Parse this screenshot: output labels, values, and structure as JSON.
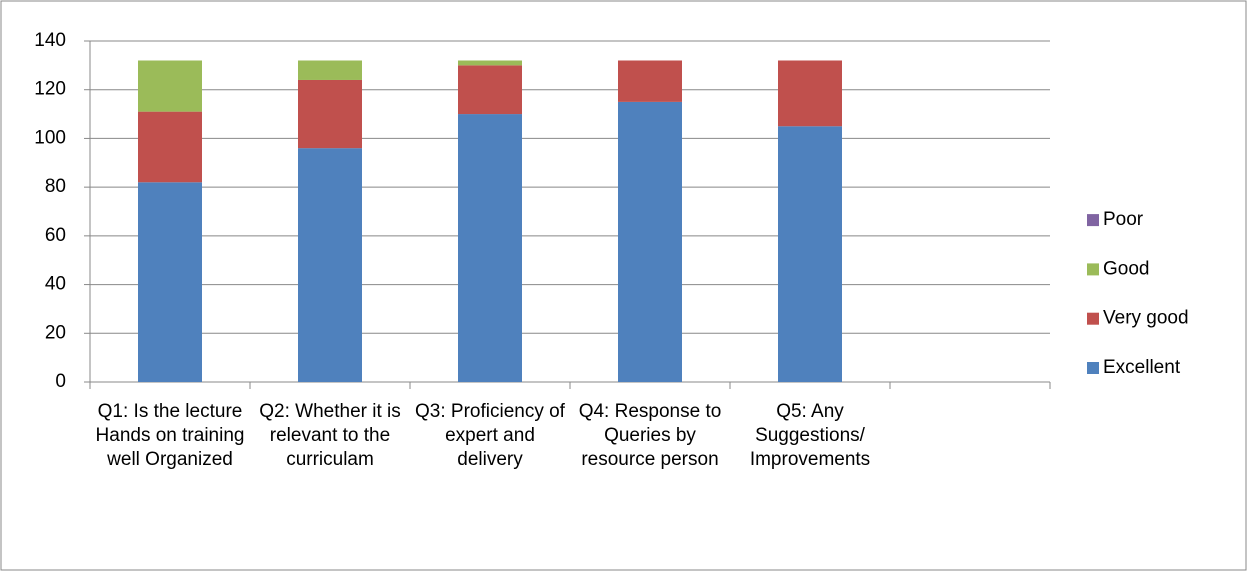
{
  "chart_data": {
    "type": "stacked_bar",
    "categories": [
      "Q1: Is the lecture Hands on training well Organized",
      "Q2: Whether it is relevant to the curriculam",
      "Q3: Proficiency of expert and delivery",
      "Q4: Response to Queries by resource person",
      "Q5: Any Suggestions/ Improvements",
      null
    ],
    "series": [
      {
        "name": "Excellent",
        "color": "#4f81bd",
        "values": [
          82,
          96,
          110,
          115,
          105,
          null
        ]
      },
      {
        "name": "Very good",
        "color": "#c0504d",
        "values": [
          29,
          28,
          20,
          17,
          27,
          null
        ]
      },
      {
        "name": "Good",
        "color": "#9bbb59",
        "values": [
          21,
          8,
          2,
          0,
          0,
          null
        ]
      },
      {
        "name": "Poor",
        "color": "#8064a2",
        "values": [
          0,
          0,
          0,
          0,
          0,
          null
        ]
      }
    ],
    "ylim": [
      0,
      140
    ],
    "yticks": [
      0,
      20,
      40,
      60,
      80,
      100,
      120,
      140
    ],
    "grid": true,
    "legend": "right"
  }
}
